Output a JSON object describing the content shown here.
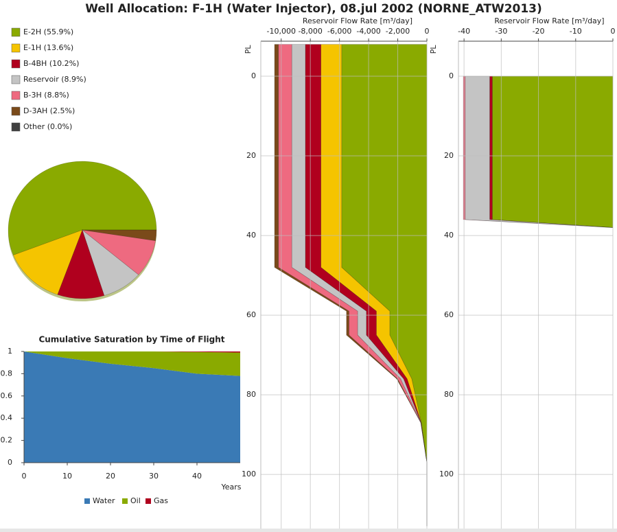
{
  "title": "Well Allocation: F-1H (Water Injector), 08.jul 2002 (NORNE_ATW2013)",
  "chart_data": [
    {
      "type": "pie",
      "labels": [
        "E-2H (55.9%)",
        "E-1H (13.6%)",
        "B-4BH (10.2%)",
        "Reservoir (8.9%)",
        "B-3H (8.8%)",
        "D-3AH (2.5%)",
        "Other (0.0%)"
      ],
      "values": [
        55.9,
        13.6,
        10.2,
        8.9,
        8.8,
        2.5,
        0.0
      ],
      "colors": [
        "#8aaa00",
        "#f5c400",
        "#b0001e",
        "#c4c4c4",
        "#ee6a80",
        "#7a4a1a",
        "#404040"
      ]
    },
    {
      "type": "area",
      "orientation": "vertical",
      "title": "Cumulative Saturation by Time of Flight",
      "x_label": "Years",
      "x": [
        0,
        5,
        10,
        20,
        30,
        40,
        50
      ],
      "series": [
        {
          "name": "Water",
          "color": "#3a7ab5",
          "values": [
            1,
            0.97,
            0.94,
            0.89,
            0.85,
            0.8,
            0.78
          ]
        },
        {
          "name": "Oil",
          "color": "#8aaa00",
          "values": [
            0,
            0.03,
            0.06,
            0.11,
            0.15,
            0.195,
            0.21
          ]
        },
        {
          "name": "Gas",
          "color": "#b0001e",
          "values": [
            0,
            0,
            0,
            0,
            0,
            0.005,
            0.01
          ]
        }
      ],
      "xlim": [
        0,
        50
      ],
      "xticks": [
        0,
        10,
        20,
        30,
        40
      ],
      "ylim": [
        0,
        1
      ],
      "yticks": [
        0,
        0.2,
        0.4,
        0.6,
        0.8,
        1
      ]
    },
    {
      "type": "area",
      "orientation": "horizontal",
      "x_label": "Reservoir Flow Rate [m³/day]",
      "y_label": "PL",
      "y": [
        -8,
        48,
        59,
        65,
        76,
        87,
        97,
        113
      ],
      "series": [
        {
          "color": "#8aaa00",
          "values": [
            -5850,
            -5850,
            -2550,
            -2550,
            -1040,
            -380,
            0,
            0
          ]
        },
        {
          "color": "#f5c400",
          "values": [
            -1424,
            -1424,
            -918,
            -918,
            -320,
            -14,
            0,
            0
          ]
        },
        {
          "color": "#b0001e",
          "values": [
            -1068,
            -1068,
            -689,
            -689,
            -240,
            -10,
            0,
            0
          ]
        },
        {
          "color": "#c4c4c4",
          "values": [
            -931,
            -931,
            -600,
            -600,
            -209,
            -9,
            0,
            0
          ]
        },
        {
          "color": "#ee6a80",
          "values": [
            -921,
            -921,
            -594,
            -594,
            -207,
            -9,
            0,
            0
          ]
        },
        {
          "color": "#7a4a1a",
          "values": [
            -262,
            -262,
            -169,
            -169,
            -59,
            -3,
            0,
            0
          ]
        }
      ],
      "xlim": [
        -11400,
        0
      ],
      "xticks": [
        {
          "value": -10000,
          "label": "-10,000"
        },
        {
          "value": -8000,
          "label": "-8,000"
        },
        {
          "value": -6000,
          "label": "-6,000"
        },
        {
          "value": -4000,
          "label": "-4,000"
        },
        {
          "value": -2000,
          "label": "-2,000"
        },
        0
      ],
      "ylim": [
        -8.8,
        113.6
      ],
      "yticks": [
        0,
        20,
        40,
        60,
        80,
        100
      ],
      "grid": true
    },
    {
      "type": "area",
      "orientation": "horizontal",
      "x_label": "Reservoir Flow Rate [m³/day]",
      "y_label": "PL",
      "y": [
        0,
        36,
        38
      ],
      "series": [
        {
          "color": "#8aaa00",
          "values": [
            -32.4,
            -32.4,
            0
          ]
        },
        {
          "color": "#b0001e",
          "values": [
            -0.7,
            -0.7,
            0
          ]
        },
        {
          "color": "#c4c4c4",
          "values": [
            -6.6,
            -6.6,
            0
          ]
        },
        {
          "color": "#ee6a80",
          "values": [
            -0.5,
            -0.5,
            0
          ]
        }
      ],
      "xlim": [
        -41.5,
        0
      ],
      "xticks": [
        -40,
        -30,
        -20,
        -10,
        0
      ],
      "ylim": [
        -8.8,
        113.6
      ],
      "yticks": [
        0,
        20,
        40,
        60,
        80,
        100
      ],
      "grid": true
    }
  ]
}
